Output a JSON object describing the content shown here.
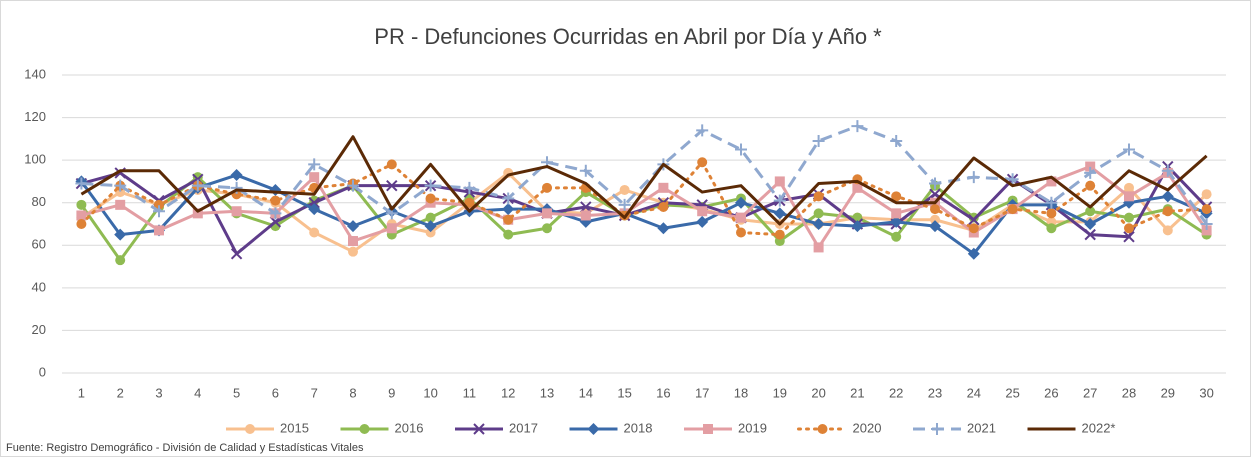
{
  "chart_data": {
    "type": "line",
    "title": "PR - Defunciones Ocurridas en Abril por Día y Año *",
    "source": "Fuente: Registro Demográfico - División de Calidad y Estadísticas Vitales",
    "categories": [
      1,
      2,
      3,
      4,
      5,
      6,
      7,
      8,
      9,
      10,
      11,
      12,
      13,
      14,
      15,
      16,
      17,
      18,
      19,
      20,
      21,
      22,
      23,
      24,
      25,
      26,
      27,
      28,
      29,
      30
    ],
    "ylim": [
      0,
      140
    ],
    "yticks": [
      0,
      20,
      40,
      60,
      80,
      100,
      120,
      140
    ],
    "grid": true,
    "legend": "bottom",
    "series": [
      {
        "name": "2015",
        "color": "#f8c08f",
        "marker": "circle",
        "dash": "solid",
        "values": [
          73,
          85,
          79,
          86,
          84,
          80,
          66,
          57,
          70,
          66,
          80,
          94,
          76,
          75,
          86,
          80,
          77,
          72,
          70,
          70,
          73,
          72,
          72,
          67,
          79,
          71,
          71,
          87,
          67,
          84
        ]
      },
      {
        "name": "2016",
        "color": "#8fbb52",
        "marker": "circle",
        "dash": "solid",
        "values": [
          79,
          53,
          78,
          92,
          75,
          69,
          81,
          88,
          65,
          73,
          82,
          65,
          68,
          85,
          74,
          79,
          78,
          82,
          62,
          75,
          73,
          64,
          88,
          73,
          81,
          68,
          76,
          73,
          77,
          65
        ]
      },
      {
        "name": "2017",
        "color": "#5e3c8a",
        "marker": "x",
        "dash": "solid",
        "values": [
          89,
          94,
          81,
          91,
          56,
          71,
          80,
          88,
          88,
          88,
          85,
          82,
          75,
          78,
          74,
          80,
          79,
          73,
          81,
          84,
          70,
          70,
          84,
          72,
          91,
          79,
          65,
          64,
          97,
          78
        ]
      },
      {
        "name": "2018",
        "color": "#3a6aa9",
        "marker": "diamond",
        "dash": "solid",
        "values": [
          90,
          65,
          67,
          87,
          93,
          86,
          77,
          69,
          76,
          69,
          76,
          77,
          77,
          71,
          75,
          68,
          71,
          80,
          75,
          70,
          69,
          71,
          69,
          56,
          79,
          79,
          70,
          80,
          83,
          75
        ]
      },
      {
        "name": "2019",
        "color": "#e39ea3",
        "marker": "square",
        "dash": "solid",
        "values": [
          74,
          79,
          67,
          75,
          76,
          75,
          92,
          62,
          68,
          80,
          79,
          72,
          75,
          74,
          75,
          87,
          76,
          73,
          90,
          59,
          87,
          75,
          80,
          66,
          77,
          90,
          97,
          83,
          94,
          67
        ]
      },
      {
        "name": "2020",
        "color": "#de8236",
        "marker": "circle",
        "dash": "dot",
        "values": [
          70,
          88,
          79,
          88,
          84,
          81,
          87,
          89,
          98,
          82,
          80,
          72,
          87,
          87,
          74,
          78,
          99,
          66,
          65,
          83,
          91,
          83,
          77,
          68,
          77,
          75,
          88,
          68,
          76,
          77
        ]
      },
      {
        "name": "2021",
        "color": "#8fa8cf",
        "marker": "plus",
        "dash": "dash",
        "values": [
          89,
          88,
          76,
          88,
          87,
          75,
          98,
          88,
          75,
          88,
          87,
          82,
          99,
          95,
          79,
          98,
          114,
          105,
          81,
          109,
          116,
          109,
          89,
          92,
          91,
          80,
          94,
          105,
          95,
          70
        ]
      },
      {
        "name": "2022*",
        "color": "#5b2a06",
        "marker": "none",
        "dash": "solid",
        "values": [
          84,
          95,
          95,
          76,
          86,
          85,
          84,
          111,
          77,
          98,
          76,
          93,
          97,
          89,
          73,
          98,
          85,
          88,
          70,
          89,
          90,
          80,
          80,
          101,
          88,
          92,
          78,
          95,
          86,
          102
        ]
      }
    ]
  }
}
